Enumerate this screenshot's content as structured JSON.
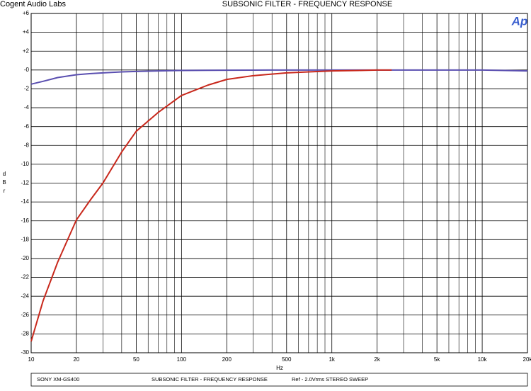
{
  "chart_data": {
    "type": "line",
    "brand": "Cogent Audio Labs",
    "title": "SUBSONIC FILTER  -  FREQUENCY RESPONSE",
    "logo": "Ap",
    "y_label": "d B r",
    "x_label": "Hz",
    "footer": [
      "SONY XM-GS400",
      "SUBSONIC FILTER  -  FREQUENCY RESPONSE",
      "Ref - 2.0Vrms  STEREO SWEEP"
    ],
    "x_log": true,
    "grid": true,
    "xlim": [
      10,
      20000
    ],
    "ylim": [
      -30,
      6
    ],
    "xticks": [
      10,
      20,
      50,
      100,
      200,
      500,
      {
        "value": 1000,
        "label": "1k"
      },
      {
        "value": 2000,
        "label": "2k"
      },
      {
        "value": 5000,
        "label": "5k"
      },
      {
        "value": 10000,
        "label": "10k"
      },
      {
        "value": 20000,
        "label": "20k"
      }
    ],
    "xminor": [
      30,
      40,
      60,
      70,
      80,
      90,
      300,
      400,
      600,
      700,
      800,
      900,
      3000,
      4000,
      6000,
      7000,
      8000,
      9000
    ],
    "yticks": [
      {
        "value": 6,
        "label": "+6"
      },
      {
        "value": 4,
        "label": "+4"
      },
      {
        "value": 2,
        "label": "+2"
      },
      {
        "value": 0,
        "label": "-0"
      },
      -2,
      -4,
      -6,
      -8,
      -10,
      -12,
      -14,
      -16,
      -18,
      -20,
      -22,
      -24,
      -26,
      -28,
      -30
    ],
    "x": [
      10,
      12,
      15,
      20,
      25,
      30,
      40,
      50,
      70,
      100,
      150,
      200,
      300,
      500,
      700,
      1000,
      1500,
      2000,
      2500,
      5000,
      10000,
      20000
    ],
    "series": [
      {
        "color": "#5a4fb0",
        "values": [
          -1.5,
          -1.2,
          -0.8,
          -0.5,
          -0.38,
          -0.3,
          -0.2,
          -0.15,
          -0.1,
          -0.05,
          -0.03,
          -0.02,
          -0.01,
          0,
          0,
          0,
          0,
          0,
          0,
          0,
          0,
          -0.1
        ]
      },
      {
        "color": "#c8281c",
        "values": [
          -28.8,
          -24.5,
          -20.4,
          -15.9,
          -13.7,
          -12,
          -8.7,
          -6.5,
          -4.5,
          -2.7,
          -1.6,
          -1.0,
          -0.6,
          -0.3,
          -0.2,
          -0.1,
          -0.05,
          0,
          0,
          null,
          null,
          null
        ]
      }
    ]
  }
}
